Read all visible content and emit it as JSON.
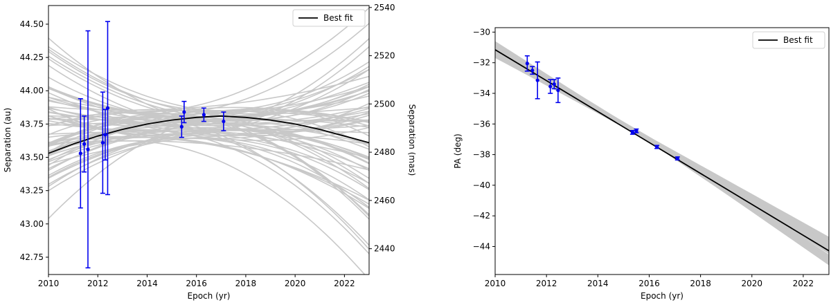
{
  "chart_data": [
    {
      "type": "line",
      "xlabel": "Epoch (yr)",
      "ylabel": "Separation (au)",
      "ylabel_right": "Separation (mas)",
      "xlim": [
        2010,
        2023
      ],
      "ylim": [
        42.62,
        44.64
      ],
      "ylim_right": [
        2429.3,
        2540.8
      ],
      "x_ticks": [
        2010,
        2012,
        2014,
        2016,
        2018,
        2020,
        2022
      ],
      "y_ticks": [
        42.75,
        43.0,
        43.25,
        43.5,
        43.75,
        44.0,
        44.25,
        44.5
      ],
      "y_tick_labels": [
        "42.75",
        "43.00",
        "43.25",
        "43.50",
        "43.75",
        "44.00",
        "44.25",
        "44.50"
      ],
      "y_ticks_right": [
        2440,
        2460,
        2480,
        2500,
        2520,
        2540
      ],
      "legend": {
        "entries": [
          "Best fit"
        ],
        "placement": "top-right"
      },
      "colors": {
        "best_fit": "#000000",
        "samples": "#c8c8c8",
        "points": "#0000ee"
      },
      "best_fit": {
        "name": "Best fit",
        "x": [
          2010,
          2011,
          2012,
          2013,
          2014,
          2015,
          2016,
          2017,
          2018,
          2019,
          2020,
          2021,
          2022,
          2023
        ],
        "y": [
          43.53,
          43.6,
          43.66,
          43.71,
          43.75,
          43.78,
          43.8,
          43.81,
          43.8,
          43.78,
          43.75,
          43.71,
          43.66,
          43.61
        ]
      },
      "data_points": [
        {
          "x": 2011.3,
          "y": 43.53,
          "err": 0.41
        },
        {
          "x": 2011.45,
          "y": 43.6,
          "err": 0.21
        },
        {
          "x": 2011.6,
          "y": 43.56,
          "err": 0.89
        },
        {
          "x": 2012.2,
          "y": 43.61,
          "err": 0.38
        },
        {
          "x": 2012.3,
          "y": 43.67,
          "err": 0.19
        },
        {
          "x": 2012.4,
          "y": 43.87,
          "err": 0.65
        },
        {
          "x": 2015.4,
          "y": 43.73,
          "err": 0.08
        },
        {
          "x": 2015.5,
          "y": 43.84,
          "err": 0.08
        },
        {
          "x": 2016.3,
          "y": 43.82,
          "err": 0.05
        },
        {
          "x": 2017.1,
          "y": 43.77,
          "err": 0.07
        }
      ]
    },
    {
      "type": "line",
      "xlabel": "Epoch (yr)",
      "ylabel": "PA (deg)",
      "xlim": [
        2010,
        2023
      ],
      "ylim": [
        -45.83,
        -29.71
      ],
      "x_ticks": [
        2010,
        2012,
        2014,
        2016,
        2018,
        2020,
        2022
      ],
      "y_ticks": [
        -44,
        -42,
        -40,
        -38,
        -36,
        -34,
        -32,
        -30
      ],
      "legend": {
        "entries": [
          "Best fit"
        ],
        "placement": "top-right"
      },
      "colors": {
        "best_fit": "#000000",
        "samples": "#c8c8c8",
        "points": "#0000ee"
      },
      "best_fit": {
        "name": "Best fit",
        "x": [
          2010,
          2023
        ],
        "y": [
          -31.15,
          -44.28
        ]
      },
      "data_points": [
        {
          "x": 2011.25,
          "y": -32.05,
          "err": 0.5
        },
        {
          "x": 2011.45,
          "y": -32.5,
          "err": 0.25
        },
        {
          "x": 2011.65,
          "y": -33.15,
          "err": 1.2
        },
        {
          "x": 2012.15,
          "y": -33.55,
          "err": 0.45
        },
        {
          "x": 2012.3,
          "y": -33.4,
          "err": 0.3
        },
        {
          "x": 2012.45,
          "y": -33.8,
          "err": 0.8
        },
        {
          "x": 2015.35,
          "y": -36.55,
          "err": 0.12
        },
        {
          "x": 2015.5,
          "y": -36.45,
          "err": 0.12
        },
        {
          "x": 2016.3,
          "y": -37.5,
          "err": 0.1
        },
        {
          "x": 2017.1,
          "y": -38.25,
          "err": 0.1
        }
      ]
    }
  ]
}
